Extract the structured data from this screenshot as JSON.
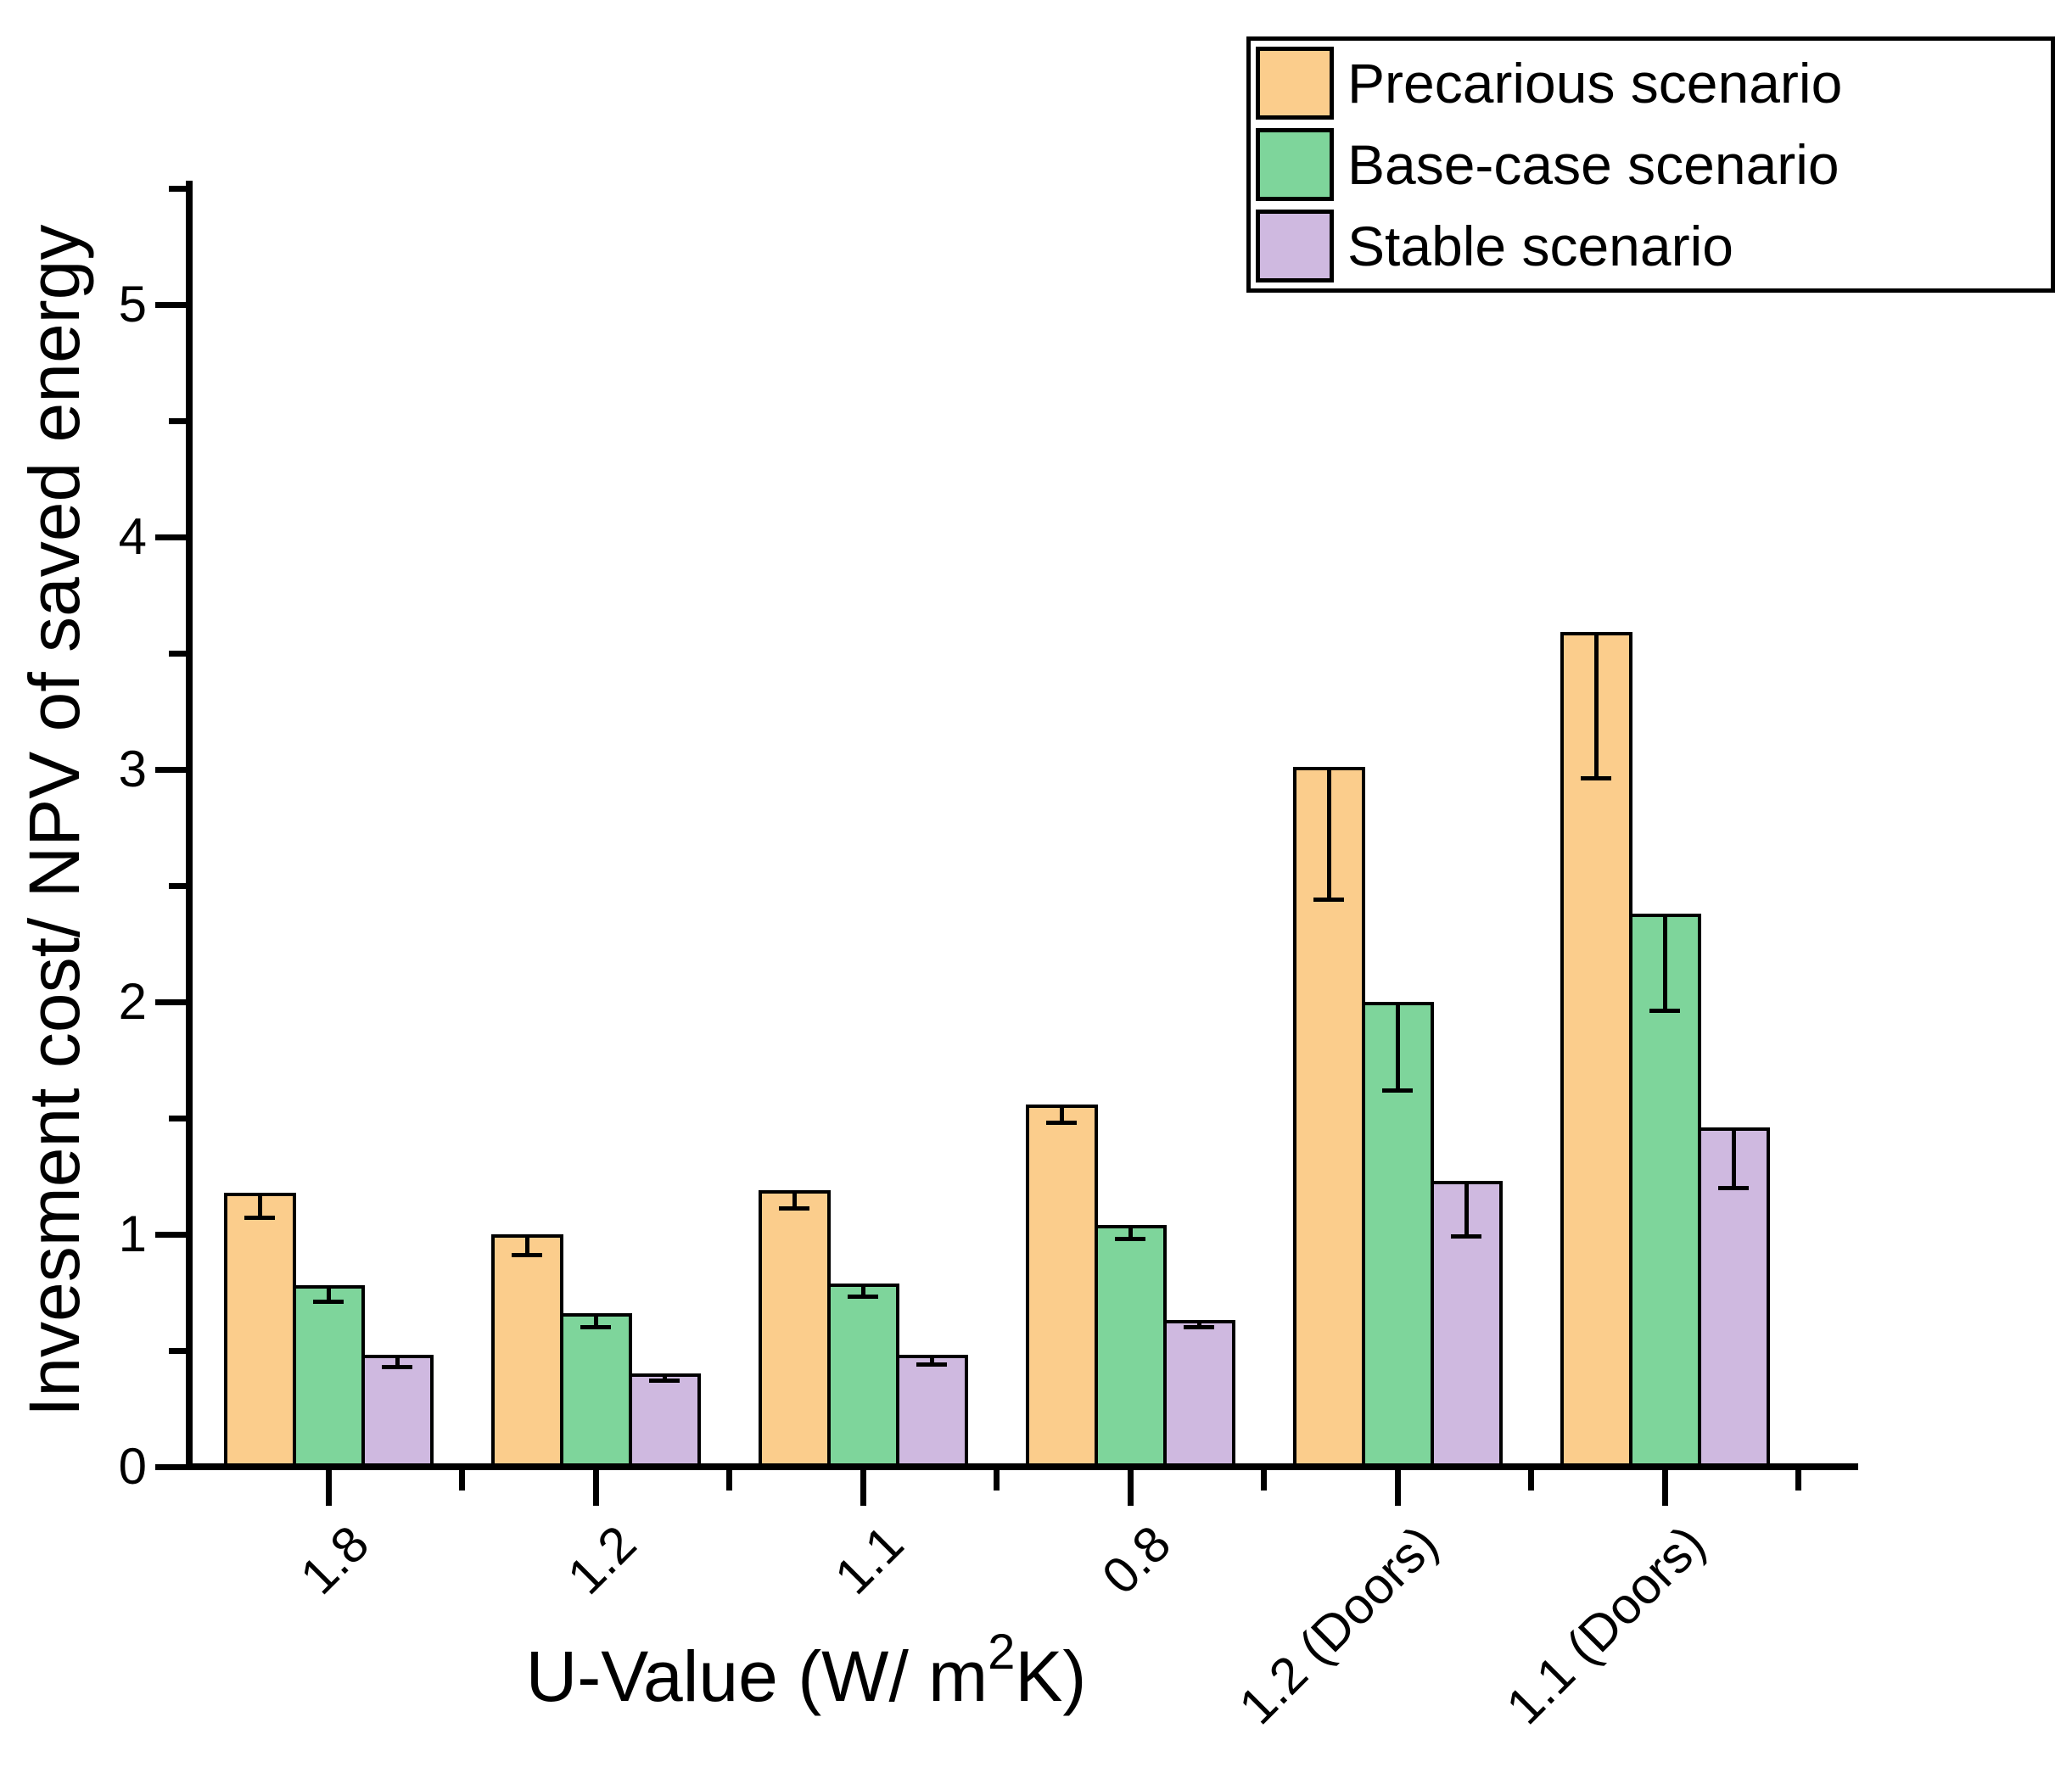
{
  "chart_data": {
    "type": "bar",
    "title": "",
    "categories": [
      "1.8",
      "1.2",
      "1.1",
      "0.8",
      "1.2 (Doors)",
      "1.1 (Doors)"
    ],
    "series": [
      {
        "name": "Precarious scenario",
        "color": "#FBCD8C",
        "values": [
          1.18,
          1.0,
          1.19,
          1.56,
          3.01,
          3.59
        ],
        "error_minus": [
          0.11,
          0.09,
          0.08,
          0.08,
          0.57,
          0.63
        ]
      },
      {
        "name": "Base-case scenario",
        "color": "#7ED59B",
        "values": [
          0.78,
          0.66,
          0.79,
          1.04,
          2.0,
          2.38
        ],
        "error_minus": [
          0.07,
          0.06,
          0.06,
          0.06,
          0.38,
          0.42
        ]
      },
      {
        "name": "Stable scenario",
        "color": "#CFB9E0",
        "values": [
          0.48,
          0.4,
          0.48,
          0.63,
          1.23,
          1.46
        ],
        "error_minus": [
          0.05,
          0.03,
          0.04,
          0.03,
          0.24,
          0.26
        ]
      }
    ],
    "xlabel": {
      "prefix": "U-Value (W/ m",
      "sup": "2",
      "suffix": "K)"
    },
    "ylabel": "Invesment cost/ NPV of saved energy",
    "ylim": [
      0,
      5.5
    ],
    "yticks": [
      0,
      1,
      2,
      3,
      4,
      5
    ],
    "y_minor_step": 0.5,
    "grid": false,
    "legend_position": "top-right",
    "error_bar_direction": "minus",
    "axis_color": "#000000",
    "background": "#FFFFFF"
  }
}
